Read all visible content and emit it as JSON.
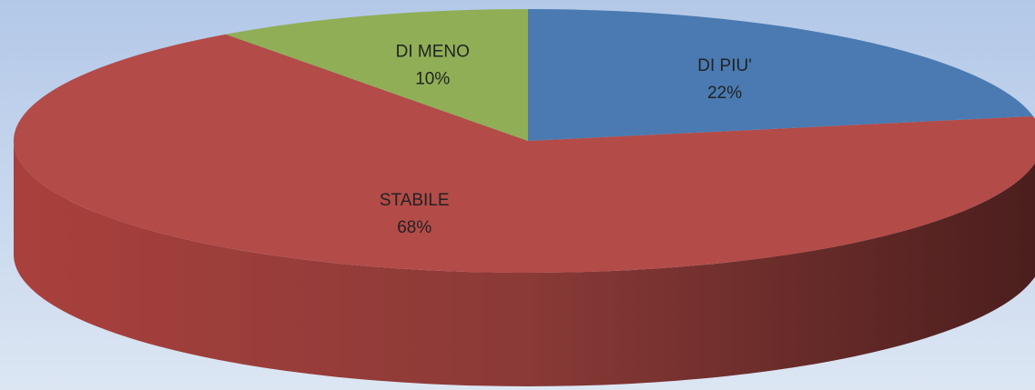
{
  "chart_data": {
    "type": "pie3d",
    "categories": [
      "DI PIU'",
      "STABILE",
      "DI MENO"
    ],
    "values": [
      22,
      68,
      10
    ],
    "value_labels": [
      "22%",
      "68%",
      "10%"
    ],
    "colors": [
      "#4a7ab1",
      "#b34b48",
      "#8fae56"
    ]
  }
}
